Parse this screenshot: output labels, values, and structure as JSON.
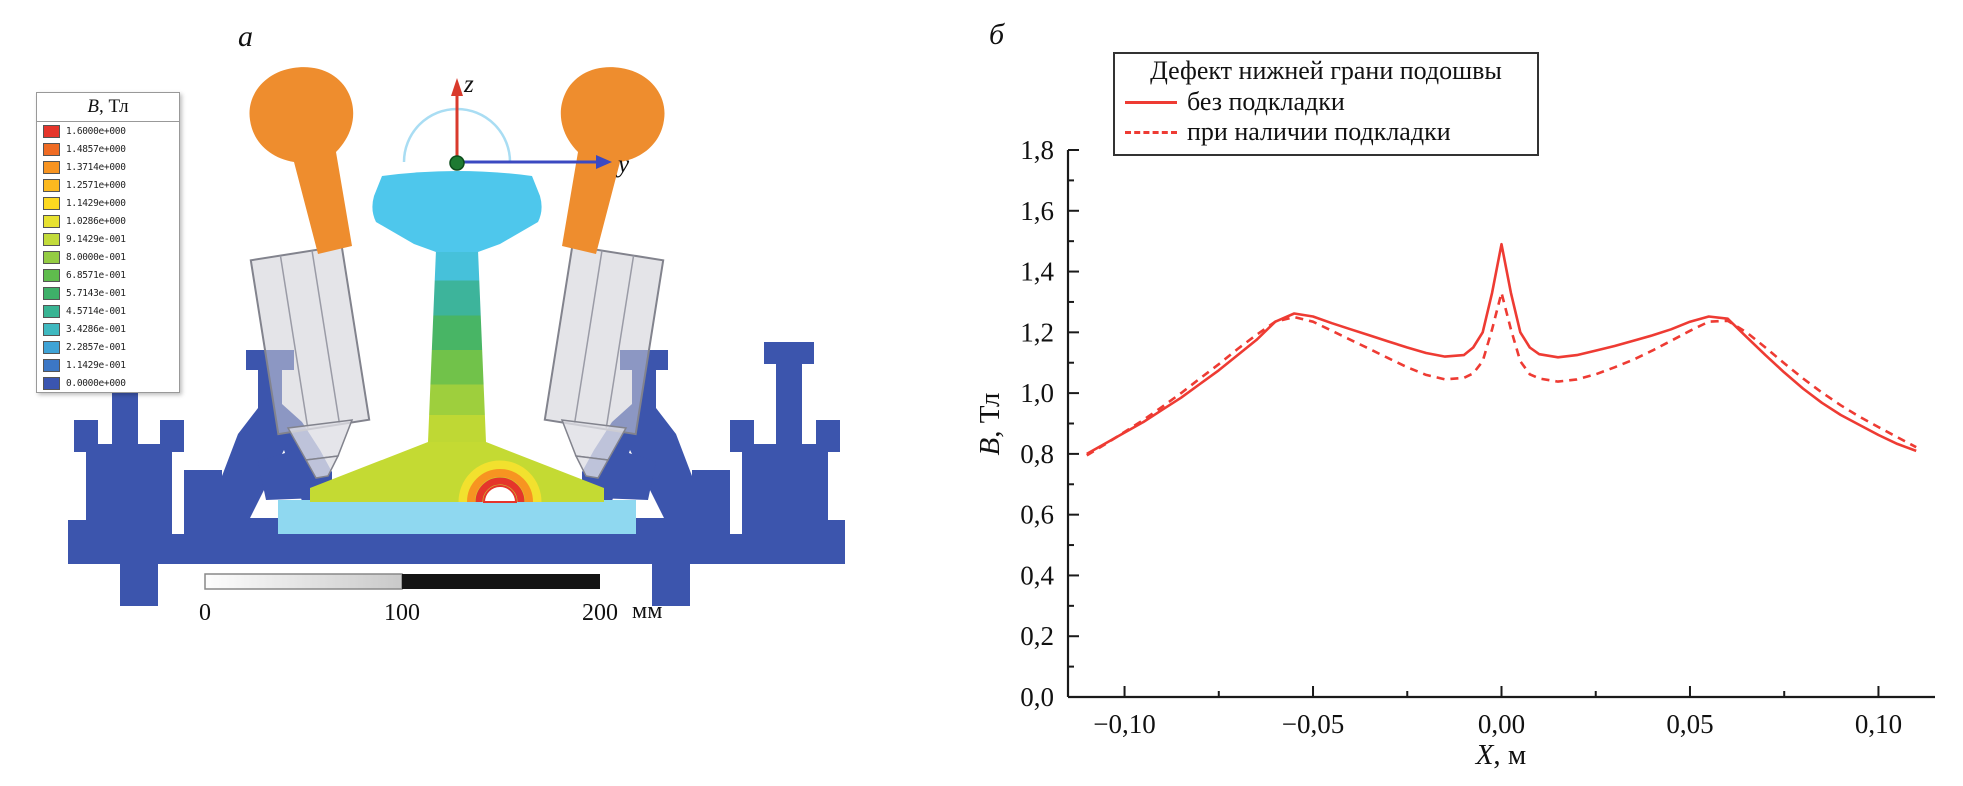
{
  "figure": {
    "panel_a_label": "а",
    "panel_b_label": "б"
  },
  "colorbar": {
    "title_italic": "B",
    "title_rest": ", Тл",
    "values": [
      "1.6000e+000",
      "1.4857e+000",
      "1.3714e+000",
      "1.2571e+000",
      "1.1429e+000",
      "1.0286e+000",
      "9.1429e-001",
      "8.0000e-001",
      "6.8571e-001",
      "5.7143e-001",
      "4.5714e-001",
      "3.4286e-001",
      "2.2857e-001",
      "1.1429e-001",
      "0.0000e+000"
    ],
    "colors": [
      "#e5352b",
      "#ef6b23",
      "#f79421",
      "#fbb91f",
      "#fdd920",
      "#e7e131",
      "#c2db3a",
      "#94cc43",
      "#5fbc4d",
      "#3eb069",
      "#39b493",
      "#3fb9c0",
      "#3fa3d6",
      "#3c77c5",
      "#3a55b0"
    ]
  },
  "scene": {
    "axis_z_label": "z",
    "axis_y_label": "y",
    "scale_labels": [
      "0",
      "100",
      "200"
    ],
    "scale_unit": "мм",
    "colors": {
      "magnet": "#ee8d2e",
      "fastener": "#3c55ad",
      "pad": "#8fd8f0",
      "rail_head": "#4ec7ec",
      "defect_red": "#e5352b",
      "defect_orange": "#f79421",
      "defect_yellow": "#f2e12e",
      "axis_z": "#d93a2c",
      "axis_y": "#3b49c1",
      "origin_dot": "#1e7a32",
      "arc": "#a9ddf3"
    }
  },
  "chart_data": {
    "type": "line",
    "title": "",
    "xlabel_italic": "X",
    "xlabel_rest": ", м",
    "ylabel_italic": "B",
    "ylabel_rest": ", Тл",
    "xlim": [
      -0.115,
      0.115
    ],
    "ylim": [
      0,
      1.8
    ],
    "grid": false,
    "legend_position": "top-left",
    "xticks": {
      "values": [
        -0.1,
        -0.05,
        0.0,
        0.05,
        0.1
      ],
      "labels": [
        "−0,10",
        "−0,05",
        "0,00",
        "0,05",
        "0,10"
      ]
    },
    "xminor": [
      -0.075,
      -0.025,
      0.025,
      0.075
    ],
    "yticks": {
      "values": [
        0,
        0.2,
        0.4,
        0.6,
        0.8,
        1.0,
        1.2,
        1.4,
        1.6,
        1.8
      ],
      "labels": [
        "0,0",
        "0,2",
        "0,4",
        "0,6",
        "0,8",
        "1,0",
        "1,2",
        "1,4",
        "1,6",
        "1,8"
      ]
    },
    "yminor": [
      0.1,
      0.3,
      0.5,
      0.7,
      0.9,
      1.1,
      1.3,
      1.5,
      1.7
    ],
    "x": [
      -0.11,
      -0.105,
      -0.1,
      -0.095,
      -0.09,
      -0.085,
      -0.08,
      -0.075,
      -0.07,
      -0.065,
      -0.06,
      -0.055,
      -0.05,
      -0.045,
      -0.04,
      -0.035,
      -0.03,
      -0.025,
      -0.02,
      -0.015,
      -0.01,
      -0.0075,
      -0.005,
      -0.0025,
      0,
      0.0025,
      0.005,
      0.0075,
      0.01,
      0.015,
      0.02,
      0.025,
      0.03,
      0.035,
      0.04,
      0.045,
      0.05,
      0.055,
      0.06,
      0.065,
      0.07,
      0.075,
      0.08,
      0.085,
      0.09,
      0.095,
      0.1,
      0.105,
      0.11
    ],
    "series": [
      {
        "name": "без подкладки",
        "style": "solid",
        "color": "#ee3b33",
        "values": [
          0.8,
          0.835,
          0.87,
          0.905,
          0.945,
          0.985,
          1.03,
          1.075,
          1.125,
          1.175,
          1.235,
          1.262,
          1.252,
          1.23,
          1.21,
          1.19,
          1.17,
          1.15,
          1.132,
          1.12,
          1.125,
          1.15,
          1.2,
          1.33,
          1.49,
          1.33,
          1.2,
          1.15,
          1.128,
          1.118,
          1.125,
          1.14,
          1.155,
          1.172,
          1.19,
          1.21,
          1.235,
          1.252,
          1.245,
          1.185,
          1.125,
          1.068,
          1.015,
          0.968,
          0.928,
          0.895,
          0.862,
          0.833,
          0.81
        ]
      },
      {
        "name": "при наличии подкладки",
        "style": "dashed",
        "color": "#ee3b33",
        "values": [
          0.795,
          0.833,
          0.872,
          0.912,
          0.955,
          1.0,
          1.048,
          1.095,
          1.145,
          1.192,
          1.235,
          1.25,
          1.235,
          1.205,
          1.175,
          1.145,
          1.115,
          1.085,
          1.06,
          1.045,
          1.05,
          1.065,
          1.105,
          1.21,
          1.33,
          1.21,
          1.105,
          1.062,
          1.048,
          1.038,
          1.045,
          1.062,
          1.085,
          1.11,
          1.14,
          1.172,
          1.205,
          1.235,
          1.238,
          1.2,
          1.15,
          1.098,
          1.048,
          1.002,
          0.96,
          0.922,
          0.888,
          0.855,
          0.822
        ]
      }
    ],
    "legend": {
      "title": "Дефект нижней грани подошвы"
    }
  }
}
